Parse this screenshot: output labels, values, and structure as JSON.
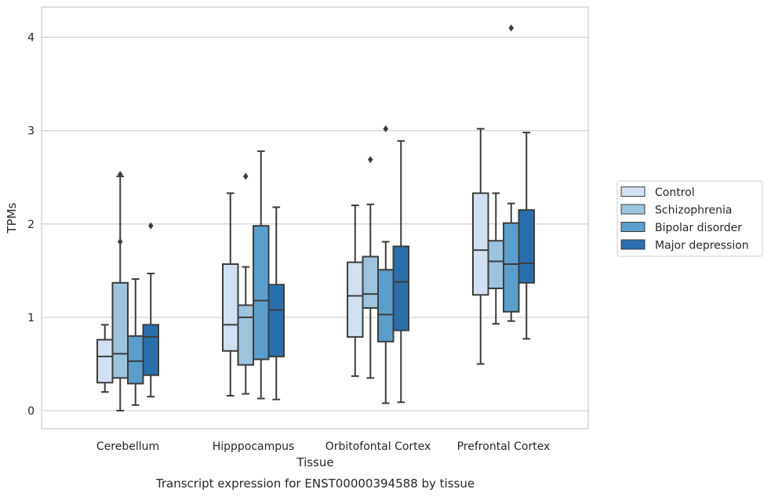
{
  "chart_data": {
    "type": "boxplot",
    "title": "",
    "caption": "Transcript expression for ENST00000394588 by tissue",
    "xlabel": "Tissue",
    "ylabel": "TPMs",
    "ylim": [
      -0.2,
      4.32
    ],
    "yticks": [
      0,
      1,
      2,
      3,
      4
    ],
    "grid": "horizontal",
    "legend_position": "right-outside",
    "categories": [
      "Cerebellum",
      "Hipppocampus",
      "Orbitofontal Cortex",
      "Prefrontal Cortex"
    ],
    "series": [
      {
        "name": "Control",
        "color": "#d1e1f1",
        "boxes": [
          {
            "whislo": 0.2,
            "q1": 0.3,
            "med": 0.58,
            "q3": 0.76,
            "whishi": 0.92,
            "fliers": []
          },
          {
            "whislo": 0.16,
            "q1": 0.64,
            "med": 0.92,
            "q3": 1.57,
            "whishi": 2.33,
            "fliers": []
          },
          {
            "whislo": 0.37,
            "q1": 0.79,
            "med": 1.23,
            "q3": 1.59,
            "whishi": 2.2,
            "fliers": []
          },
          {
            "whislo": 0.5,
            "q1": 1.24,
            "med": 1.72,
            "q3": 2.33,
            "whishi": 3.02,
            "fliers": []
          }
        ]
      },
      {
        "name": "Schizophrenia",
        "color": "#9cc4dd",
        "boxes": [
          {
            "whislo": 0.0,
            "q1": 0.35,
            "med": 0.61,
            "q3": 1.37,
            "whishi": 2.51,
            "fliers": [
              1.81,
              2.53
            ]
          },
          {
            "whislo": 0.18,
            "q1": 0.49,
            "med": 1.0,
            "q3": 1.13,
            "whishi": 1.54,
            "fliers": [
              2.51
            ]
          },
          {
            "whislo": 0.35,
            "q1": 1.1,
            "med": 1.25,
            "q3": 1.65,
            "whishi": 2.21,
            "fliers": [
              2.69
            ]
          },
          {
            "whislo": 0.93,
            "q1": 1.31,
            "med": 1.6,
            "q3": 1.82,
            "whishi": 2.33,
            "fliers": []
          }
        ]
      },
      {
        "name": "Bipolar disorder",
        "color": "#5b9ecb",
        "boxes": [
          {
            "whislo": 0.06,
            "q1": 0.29,
            "med": 0.53,
            "q3": 0.8,
            "whishi": 1.41,
            "fliers": []
          },
          {
            "whislo": 0.13,
            "q1": 0.55,
            "med": 1.18,
            "q3": 1.98,
            "whishi": 2.78,
            "fliers": []
          },
          {
            "whislo": 0.08,
            "q1": 0.74,
            "med": 1.03,
            "q3": 1.51,
            "whishi": 1.81,
            "fliers": [
              3.02
            ]
          },
          {
            "whislo": 0.96,
            "q1": 1.06,
            "med": 1.57,
            "q3": 2.01,
            "whishi": 2.22,
            "fliers": [
              4.1
            ]
          }
        ]
      },
      {
        "name": "Major depression",
        "color": "#2a6fad",
        "boxes": [
          {
            "whislo": 0.15,
            "q1": 0.38,
            "med": 0.79,
            "q3": 0.92,
            "whishi": 1.47,
            "fliers": [
              1.98
            ]
          },
          {
            "whislo": 0.12,
            "q1": 0.58,
            "med": 1.08,
            "q3": 1.35,
            "whishi": 2.18,
            "fliers": []
          },
          {
            "whislo": 0.09,
            "q1": 0.86,
            "med": 1.38,
            "q3": 1.76,
            "whishi": 2.89,
            "fliers": []
          },
          {
            "whislo": 0.77,
            "q1": 1.37,
            "med": 1.58,
            "q3": 2.15,
            "whishi": 2.98,
            "fliers": []
          }
        ]
      }
    ]
  }
}
